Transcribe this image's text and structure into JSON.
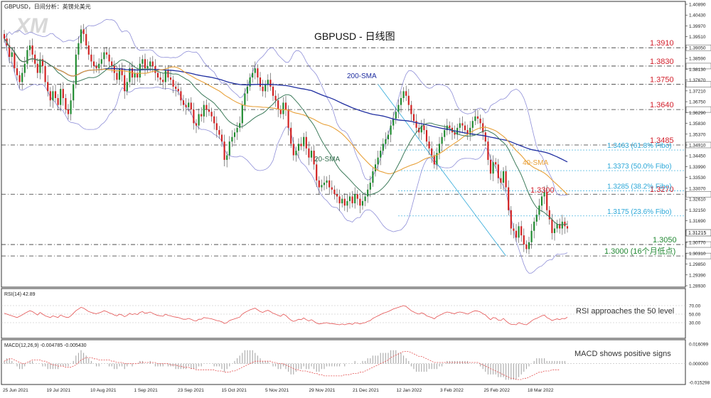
{
  "header": {
    "symbol_line": "GBPUSD，日间分析：英镑兑美元",
    "watermark": "XM"
  },
  "colors": {
    "bull": "#1e8a2e",
    "bear": "#d12020",
    "sma20": "#3c7a5a",
    "sma40": "#e8a13a",
    "sma200": "#1f2ea0",
    "bands": "#8f8fd8",
    "fibo": "#2aa7d8",
    "level_red": "#d21f2b",
    "level_green": "#228833",
    "level_blue": "#1f2ea0",
    "rsi_line": "#e45050",
    "macd_signal": "#e45050",
    "macd_hist": "#a0a0a0",
    "pane_border": "#333333"
  },
  "chart_data": [
    {
      "type": "candlestick",
      "title": "GBPUSD - 日线图",
      "x_dates": [
        "25 Jun 2021",
        "19 Jul 2021",
        "10 Aug 2021",
        "1 Sep 2021",
        "23 Sep 2021",
        "15 Oct 2021",
        "5 Nov 2021",
        "29 Nov 2021",
        "21 Dec 2021",
        "12 Jan 2022",
        "3 Feb 2022",
        "25 Feb 2022",
        "18 Mar 2022"
      ],
      "y_ticks": [
        "1.40890",
        "1.40430",
        "1.39970",
        "1.39510",
        "1.39050",
        "1.38590",
        "1.38130",
        "1.37670",
        "1.37210",
        "1.36750",
        "1.36290",
        "1.35830",
        "1.35370",
        "1.34910",
        "1.34450",
        "1.33990",
        "1.33530",
        "1.33070",
        "1.32610",
        "1.32150",
        "1.31690",
        "1.31230",
        "1.30770",
        "1.30310",
        "1.29850",
        "1.29390",
        "1.28930"
      ],
      "ylim": [
        1.287,
        1.41
      ],
      "last_price_tag": "1.31215",
      "overlay_labels": {
        "sma200": "200-SMA",
        "sma20": "20-SMA",
        "sma40": "40-SMA"
      },
      "close_series": [
        1.395,
        1.392,
        1.387,
        1.389,
        1.382,
        1.379,
        1.376,
        1.38,
        1.384,
        1.39,
        1.392,
        1.388,
        1.384,
        1.38,
        1.386,
        1.383,
        1.376,
        1.372,
        1.368,
        1.372,
        1.369,
        1.366,
        1.373,
        1.369,
        1.364,
        1.362,
        1.368,
        1.375,
        1.388,
        1.393,
        1.399,
        1.397,
        1.392,
        1.388,
        1.385,
        1.383,
        1.382,
        1.384,
        1.386,
        1.389,
        1.388,
        1.385,
        1.383,
        1.38,
        1.377,
        1.382,
        1.379,
        1.372,
        1.376,
        1.382,
        1.378,
        1.38,
        1.378,
        1.384,
        1.386,
        1.382,
        1.383,
        1.385,
        1.383,
        1.38,
        1.378,
        1.377,
        1.376,
        1.381,
        1.378,
        1.377,
        1.374,
        1.373,
        1.372,
        1.368,
        1.366,
        1.365,
        1.367,
        1.364,
        1.358,
        1.357,
        1.362,
        1.361,
        1.366,
        1.364,
        1.363,
        1.361,
        1.358,
        1.355,
        1.353,
        1.35,
        1.342,
        1.344,
        1.35,
        1.352,
        1.354,
        1.356,
        1.358,
        1.366,
        1.371,
        1.374,
        1.378,
        1.38,
        1.382,
        1.378,
        1.374,
        1.372,
        1.375,
        1.377,
        1.374,
        1.37,
        1.368,
        1.364,
        1.362,
        1.367,
        1.364,
        1.356,
        1.349,
        1.344,
        1.346,
        1.349,
        1.348,
        1.352,
        1.347,
        1.343,
        1.346,
        1.34,
        1.333,
        1.33,
        1.331,
        1.332,
        1.333,
        1.33,
        1.329,
        1.327,
        1.326,
        1.323,
        1.325,
        1.322,
        1.324,
        1.326,
        1.323,
        1.327,
        1.325,
        1.322,
        1.324,
        1.326,
        1.329,
        1.332,
        1.337,
        1.34,
        1.343,
        1.346,
        1.349,
        1.351,
        1.353,
        1.357,
        1.36,
        1.363,
        1.366,
        1.369,
        1.372,
        1.37,
        1.366,
        1.362,
        1.359,
        1.356,
        1.354,
        1.357,
        1.355,
        1.35,
        1.347,
        1.344,
        1.34,
        1.345,
        1.349,
        1.352,
        1.355,
        1.357,
        1.356,
        1.354,
        1.353,
        1.356,
        1.358,
        1.357,
        1.355,
        1.353,
        1.356,
        1.359,
        1.361,
        1.36,
        1.358,
        1.354,
        1.35,
        1.342,
        1.336,
        1.341,
        1.34,
        1.334,
        1.332,
        1.337,
        1.33,
        1.32,
        1.312,
        1.311,
        1.308,
        1.313,
        1.309,
        1.305,
        1.303,
        1.306,
        1.311,
        1.315,
        1.318,
        1.322,
        1.326,
        1.328,
        1.32,
        1.316,
        1.31,
        1.312,
        1.314,
        1.312,
        1.315,
        1.313,
        1.312
      ],
      "levels": [
        {
          "value": 1.391,
          "label": "1.3910",
          "kind": "red"
        },
        {
          "value": 1.383,
          "label": "1.3830",
          "kind": "red"
        },
        {
          "value": 1.375,
          "label": "1.3750",
          "kind": "red"
        },
        {
          "value": 1.364,
          "label": "1.3640",
          "kind": "red"
        },
        {
          "value": 1.3485,
          "label": "1.3485",
          "kind": "red"
        },
        {
          "value": 1.327,
          "label": "1.3270",
          "kind": "red"
        },
        {
          "value": 1.305,
          "label": "1.3050",
          "kind": "green"
        },
        {
          "value": 1.3,
          "label": "1.3000 (16个月低点)",
          "kind": "green"
        }
      ],
      "fibo_levels": [
        {
          "value": 1.3463,
          "label": "1.3463 (61.8% Fibo)"
        },
        {
          "value": 1.3373,
          "label": "1.3373 (50.0% Fibo)"
        },
        {
          "value": 1.3285,
          "label": "1.3285 (38.2% Fibo)"
        },
        {
          "value": 1.3175,
          "label": "1.3175 (23.6% Fibo)"
        }
      ],
      "annotation_high": "1.3300"
    },
    {
      "type": "line",
      "title": "RSI(14) 42.89",
      "y_ticks": [
        "70.00",
        "50.00",
        "30.00"
      ],
      "ylim": [
        0,
        100
      ],
      "annotation": "RSI approaches the 50 level",
      "values": [
        52,
        50,
        48,
        46,
        44,
        42,
        45,
        48,
        52,
        55,
        58,
        56,
        52,
        48,
        54,
        50,
        46,
        44,
        42,
        46,
        44,
        42,
        48,
        45,
        43,
        42,
        46,
        52,
        58,
        62,
        66,
        64,
        60,
        56,
        54,
        52,
        51,
        53,
        55,
        58,
        56,
        53,
        51,
        48,
        46,
        50,
        48,
        44,
        47,
        52,
        49,
        51,
        49,
        54,
        56,
        52,
        53,
        55,
        52,
        49,
        47,
        46,
        45,
        50,
        47,
        46,
        44,
        43,
        42,
        40,
        38,
        38,
        40,
        38,
        35,
        34,
        38,
        38,
        42,
        41,
        40,
        39,
        37,
        35,
        34,
        32,
        28,
        30,
        35,
        37,
        39,
        41,
        43,
        50,
        54,
        57,
        60,
        62,
        64,
        60,
        56,
        54,
        57,
        59,
        56,
        52,
        50,
        47,
        45,
        50,
        47,
        41,
        36,
        33,
        35,
        38,
        37,
        41,
        37,
        34,
        37,
        33,
        29,
        27,
        28,
        29,
        30,
        28,
        28,
        27,
        26,
        25,
        27,
        25,
        27,
        28,
        26,
        30,
        29,
        27,
        29,
        30,
        33,
        35,
        40,
        43,
        46,
        49,
        52,
        54,
        56,
        59,
        62,
        64,
        66,
        68,
        70,
        68,
        63,
        58,
        55,
        52,
        50,
        53,
        51,
        46,
        44,
        42,
        39,
        44,
        47,
        50,
        53,
        55,
        54,
        52,
        51,
        54,
        55,
        54,
        52,
        50,
        53,
        56,
        58,
        57,
        55,
        51,
        48,
        42,
        37,
        42,
        41,
        36,
        35,
        40,
        34,
        29,
        26,
        26,
        25,
        30,
        28,
        26,
        25,
        29,
        34,
        38,
        40,
        43,
        46,
        48,
        42,
        39,
        35,
        37,
        39,
        37,
        40,
        39,
        43
      ]
    },
    {
      "type": "line",
      "title": "MACD(12,26,9) -0.004785 -0.005430",
      "y_ticks": [
        "0.016099",
        "0.000000",
        "-0.015298"
      ],
      "ylim": [
        -0.0153,
        0.0161
      ],
      "annotation": "MACD shows positive signs",
      "signal": [
        0.002,
        0.003,
        0.004,
        0.004,
        0.003,
        0.002,
        0.001,
        0.0,
        0.0,
        0.001,
        0.002,
        0.003,
        0.003,
        0.003,
        0.003,
        0.002,
        0.002,
        0.001,
        0.0,
        -0.001,
        -0.001,
        -0.002,
        -0.002,
        -0.002,
        -0.003,
        -0.003,
        -0.003,
        -0.002,
        -0.001,
        0.001,
        0.003,
        0.004,
        0.005,
        0.005,
        0.005,
        0.004,
        0.004,
        0.003,
        0.003,
        0.003,
        0.003,
        0.003,
        0.002,
        0.002,
        0.001,
        0.001,
        0.001,
        0.0,
        0.0,
        0.0,
        0.0,
        0.0,
        0.0,
        0.001,
        0.001,
        0.001,
        0.001,
        0.001,
        0.001,
        0.001,
        0.0,
        0.0,
        0.0,
        0.0,
        0.0,
        -0.001,
        -0.001,
        -0.001,
        -0.002,
        -0.002,
        -0.003,
        -0.003,
        -0.003,
        -0.004,
        -0.004,
        -0.005,
        -0.005,
        -0.005,
        -0.005,
        -0.005,
        -0.005,
        -0.005,
        -0.005,
        -0.006,
        -0.006,
        -0.006,
        -0.007,
        -0.007,
        -0.007,
        -0.006,
        -0.006,
        -0.005,
        -0.004,
        -0.003,
        -0.002,
        -0.001,
        0.0,
        0.001,
        0.002,
        0.002,
        0.002,
        0.002,
        0.002,
        0.002,
        0.002,
        0.001,
        0.001,
        0.0,
        0.0,
        0.0,
        -0.001,
        -0.002,
        -0.003,
        -0.004,
        -0.005,
        -0.005,
        -0.006,
        -0.006,
        -0.006,
        -0.007,
        -0.007,
        -0.008,
        -0.008,
        -0.009,
        -0.009,
        -0.01,
        -0.01,
        -0.01,
        -0.01,
        -0.01,
        -0.01,
        -0.01,
        -0.01,
        -0.009,
        -0.009,
        -0.009,
        -0.008,
        -0.008,
        -0.008,
        -0.007,
        -0.007,
        -0.006,
        -0.005,
        -0.004,
        -0.003,
        -0.002,
        -0.001,
        0.0,
        0.001,
        0.002,
        0.003,
        0.005,
        0.006,
        0.007,
        0.008,
        0.009,
        0.01,
        0.01,
        0.01,
        0.009,
        0.008,
        0.007,
        0.006,
        0.006,
        0.005,
        0.004,
        0.003,
        0.002,
        0.001,
        0.001,
        0.001,
        0.001,
        0.001,
        0.001,
        0.001,
        0.001,
        0.001,
        0.001,
        0.001,
        0.001,
        0.001,
        0.001,
        0.001,
        0.001,
        0.001,
        0.001,
        0.0,
        -0.001,
        -0.002,
        -0.003,
        -0.004,
        -0.005,
        -0.006,
        -0.007,
        -0.008,
        -0.009,
        -0.01,
        -0.011,
        -0.012,
        -0.012,
        -0.013,
        -0.013,
        -0.013,
        -0.012,
        -0.012,
        -0.011,
        -0.01,
        -0.009,
        -0.008,
        -0.007,
        -0.007,
        -0.006,
        -0.006,
        -0.006,
        -0.005,
        -0.005,
        -0.005,
        -0.005
      ],
      "histogram": [
        0.001,
        0.002,
        0.002,
        0.001,
        0.0,
        -0.001,
        -0.002,
        -0.002,
        -0.001,
        0.0,
        0.001,
        0.001,
        0.0,
        0.0,
        0.0,
        -0.001,
        -0.001,
        -0.002,
        -0.002,
        -0.002,
        -0.002,
        -0.002,
        -0.001,
        -0.001,
        -0.001,
        -0.001,
        0.0,
        0.001,
        0.003,
        0.004,
        0.005,
        0.004,
        0.003,
        0.002,
        0.001,
        0.0,
        -0.001,
        -0.001,
        0.0,
        0.0,
        0.0,
        -0.001,
        -0.001,
        -0.002,
        -0.002,
        -0.001,
        -0.001,
        -0.002,
        -0.001,
        0.0,
        -0.001,
        0.0,
        0.0,
        0.001,
        0.001,
        0.0,
        0.0,
        0.001,
        0.0,
        -0.001,
        -0.001,
        -0.001,
        -0.001,
        0.0,
        -0.001,
        -0.001,
        -0.001,
        -0.002,
        -0.002,
        -0.002,
        -0.002,
        -0.002,
        -0.001,
        -0.002,
        -0.002,
        -0.002,
        -0.001,
        -0.001,
        0.0,
        0.0,
        0.0,
        0.0,
        -0.001,
        -0.001,
        -0.001,
        -0.002,
        -0.003,
        -0.002,
        -0.001,
        0.0,
        0.001,
        0.002,
        0.003,
        0.004,
        0.005,
        0.005,
        0.005,
        0.005,
        0.004,
        0.003,
        0.002,
        0.001,
        0.001,
        0.001,
        0.0,
        -0.001,
        -0.001,
        -0.002,
        -0.002,
        -0.001,
        -0.002,
        -0.003,
        -0.004,
        -0.004,
        -0.003,
        -0.002,
        -0.002,
        -0.001,
        -0.002,
        -0.002,
        -0.001,
        -0.002,
        -0.003,
        -0.003,
        -0.002,
        -0.002,
        -0.001,
        -0.001,
        -0.001,
        -0.001,
        -0.001,
        -0.001,
        0.0,
        -0.001,
        0.0,
        0.0,
        0.0,
        0.001,
        0.0,
        0.0,
        0.001,
        0.001,
        0.002,
        0.002,
        0.003,
        0.003,
        0.003,
        0.004,
        0.004,
        0.004,
        0.004,
        0.005,
        0.005,
        0.005,
        0.004,
        0.004,
        0.003,
        0.002,
        0.001,
        -0.001,
        -0.002,
        -0.003,
        -0.003,
        -0.003,
        -0.003,
        -0.003,
        -0.002,
        -0.002,
        -0.002,
        -0.002,
        -0.001,
        -0.001,
        0.0,
        0.001,
        0.001,
        0.001,
        0.001,
        0.001,
        0.001,
        0.001,
        0.001,
        0.001,
        0.0,
        0.0,
        0.0,
        0.0,
        -0.001,
        -0.002,
        -0.003,
        -0.004,
        -0.004,
        -0.004,
        -0.004,
        -0.005,
        -0.005,
        -0.005,
        -0.006,
        -0.006,
        -0.006,
        -0.006,
        -0.006,
        -0.005,
        -0.004,
        -0.003,
        -0.002,
        -0.001,
        0.0,
        0.001,
        0.002,
        0.002,
        0.002,
        0.002,
        0.001,
        0.001,
        0.001,
        0.001,
        0.001,
        0.001,
        0.001,
        0.001
      ]
    }
  ]
}
